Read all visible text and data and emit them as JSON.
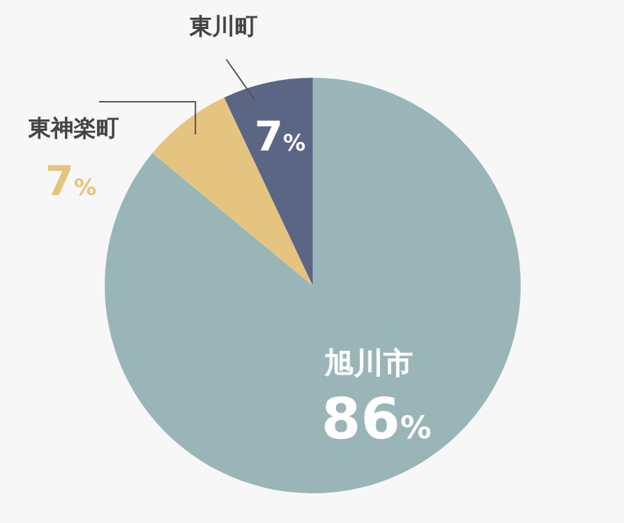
{
  "chart_data": {
    "type": "pie",
    "categories": [
      "旭川市",
      "東神楽町",
      "東川町"
    ],
    "values": [
      86,
      7,
      7
    ],
    "value_labels": [
      "86%",
      "7%",
      "7%"
    ],
    "colors": [
      "#9ab5b8",
      "#e5c47f",
      "#5b6685"
    ]
  }
}
